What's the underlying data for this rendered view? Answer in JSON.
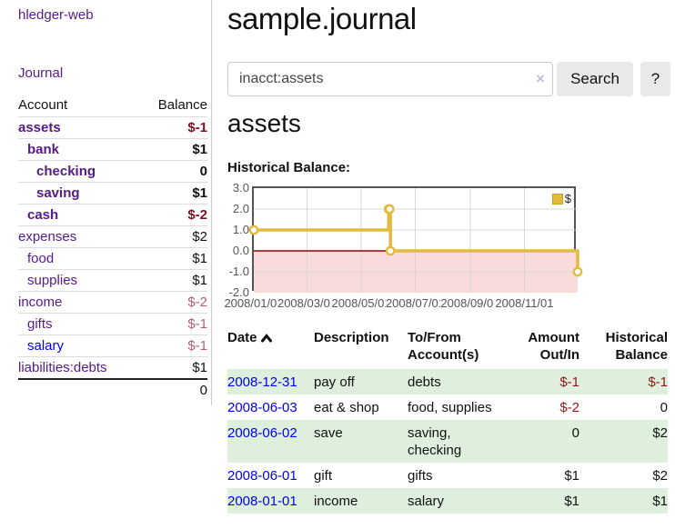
{
  "app": {
    "brand": "hledger-web"
  },
  "nav": {
    "journal_label": "Journal"
  },
  "colors": {
    "link_visited_purple": "#551a8b",
    "link_blue": "#0000ee",
    "negative_strong": "#7d1021",
    "negative_soft": "#b2606e",
    "table_negative": "#8b1a1a",
    "row_green": "#def0dd",
    "series_gold": "#e4ba3e",
    "zero_line_red": "#990000",
    "negative_region_pink": "#f9dbdb",
    "button_bg": "#e9e9e9"
  },
  "sidebar": {
    "headers": {
      "account": "Account",
      "balance": "Balance"
    },
    "accounts": [
      {
        "name": "assets",
        "balance": "$-1",
        "indent": 0,
        "bold": true
      },
      {
        "name": "bank",
        "balance": "$1",
        "indent": 1,
        "bold": true
      },
      {
        "name": "checking",
        "balance": "0",
        "indent": 2,
        "bold": true
      },
      {
        "name": "saving",
        "balance": "$1",
        "indent": 2,
        "bold": true
      },
      {
        "name": "cash",
        "balance": "$-2",
        "indent": 1,
        "bold": true
      },
      {
        "name": "expenses",
        "balance": "$2",
        "indent": 0,
        "bold": false
      },
      {
        "name": "food",
        "balance": "$1",
        "indent": 1,
        "bold": false
      },
      {
        "name": "supplies",
        "balance": "$1",
        "indent": 1,
        "bold": false
      },
      {
        "name": "income",
        "balance": "$-2",
        "indent": 0,
        "bold": false
      },
      {
        "name": "gifts",
        "balance": "$-1",
        "indent": 1,
        "bold": false
      },
      {
        "name": "salary",
        "balance": "$-1",
        "indent": 1,
        "bold": false,
        "unvisited": true
      },
      {
        "name": "liabilities:debts",
        "balance": "$1",
        "indent": 0,
        "bold": false
      }
    ],
    "total": "0"
  },
  "header": {
    "title": "sample.journal"
  },
  "search": {
    "value": "inacct:assets",
    "clear_icon": "×",
    "button_label": "Search",
    "help_label": "?"
  },
  "account_page": {
    "heading": "assets",
    "chart_label": "Historical Balance:"
  },
  "chart_data": {
    "type": "line",
    "step": true,
    "title": "Historical Balance",
    "series": [
      {
        "name": "$",
        "points": [
          [
            "2008-01-01",
            1
          ],
          [
            "2008-06-01",
            2
          ],
          [
            "2008-06-02",
            2
          ],
          [
            "2008-06-03",
            0
          ],
          [
            "2008-12-31",
            -1
          ]
        ]
      }
    ],
    "xlim": [
      "2008-01-01",
      "2008-12-31"
    ],
    "ylim": [
      -2,
      3
    ],
    "yticks": [
      3.0,
      2.0,
      1.0,
      0.0,
      -1.0,
      -2.0
    ],
    "xtick_labels": [
      "2008/01/01",
      "2008/03/01",
      "2008/05/01",
      "2008/07/01",
      "2008/09/01",
      "2008/11/01"
    ],
    "grid": true,
    "legend_position": "top-right",
    "negative_region_shaded": true
  },
  "register": {
    "columns": [
      "Date",
      "Description",
      "To/From Account(s)",
      "Amount Out/In",
      "Historical Balance"
    ],
    "rows": [
      {
        "date": "2008-12-31",
        "description": "pay off",
        "accounts": "debts",
        "amount": "$-1",
        "balance": "$-1"
      },
      {
        "date": "2008-06-03",
        "description": "eat & shop",
        "accounts": "food, supplies",
        "amount": "$-2",
        "balance": "0"
      },
      {
        "date": "2008-06-02",
        "description": "save",
        "accounts": "saving, checking",
        "amount": "0",
        "balance": "$2"
      },
      {
        "date": "2008-06-01",
        "description": "gift",
        "accounts": "gifts",
        "amount": "$1",
        "balance": "$2"
      },
      {
        "date": "2008-01-01",
        "description": "income",
        "accounts": "salary",
        "amount": "$1",
        "balance": "$1"
      }
    ]
  }
}
